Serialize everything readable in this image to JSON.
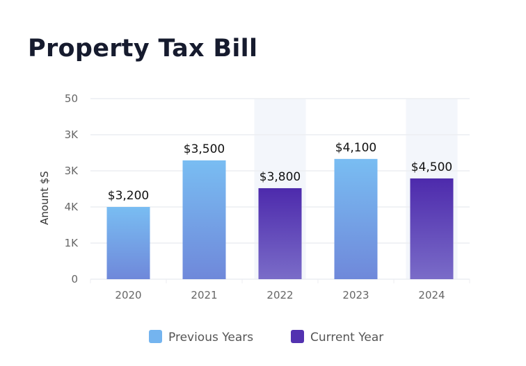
{
  "chart_data": {
    "type": "bar",
    "title": "Property Tax Bill",
    "xlabel": "",
    "ylabel": "Anount $S",
    "y_tick_labels": [
      "0",
      "1K",
      "4K",
      "3K",
      "3K",
      "50"
    ],
    "y_axis_units": [
      0,
      5
    ],
    "categories": [
      "2020",
      "2021",
      "2022",
      "2023",
      "2024"
    ],
    "data_labels": [
      "$3,200",
      "$3,500",
      "$3,800",
      "$4,100",
      "$4,500"
    ],
    "values": [
      3200,
      3500,
      3800,
      4100,
      4500
    ],
    "plotted_heights_axis_units": [
      2.0,
      3.29,
      2.52,
      3.33,
      2.79
    ],
    "series_assignment": [
      "previous",
      "previous",
      "current",
      "previous",
      "current"
    ],
    "highlighted_categories": [
      "2022",
      "2024"
    ],
    "grid": true,
    "legend_position": "bottom",
    "legend": [
      {
        "key": "previous",
        "label": "Previous Years",
        "color": "#74b4ef"
      },
      {
        "key": "current",
        "label": "Current Year",
        "color": "#5332b0"
      }
    ]
  },
  "colors": {
    "previous_top": "#79bdf2",
    "previous_bottom": "#6f88da",
    "current_top": "#4d2aac",
    "current_bottom": "#7a6cc8",
    "band": "#f3f6fb",
    "grid": "#eceef2"
  }
}
